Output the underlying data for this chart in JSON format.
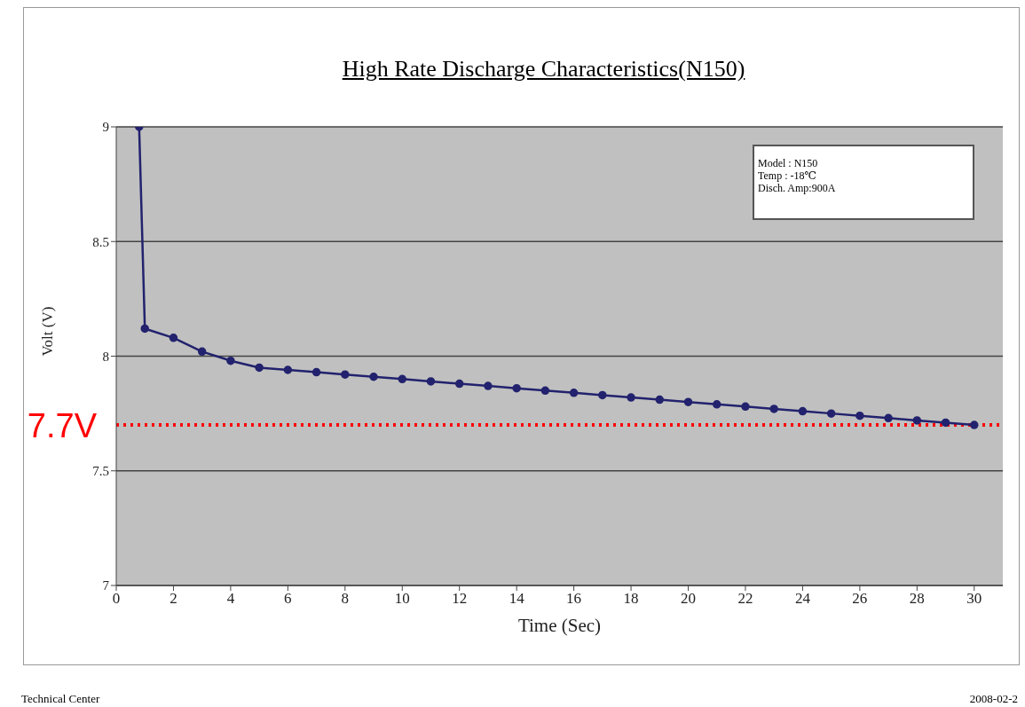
{
  "chart_data": {
    "type": "line",
    "title": "High Rate Discharge Characteristics(N150)",
    "xlabel": "Time (Sec)",
    "ylabel": "Volt (V)",
    "x": [
      0.8,
      1,
      2,
      3,
      4,
      5,
      6,
      7,
      8,
      9,
      10,
      11,
      12,
      13,
      14,
      15,
      16,
      17,
      18,
      19,
      20,
      21,
      22,
      23,
      24,
      25,
      26,
      27,
      28,
      29,
      30
    ],
    "series": [
      {
        "color": "#22226e",
        "values": [
          9,
          8.12,
          8.08,
          8.02,
          7.98,
          7.95,
          7.94,
          7.93,
          7.92,
          7.91,
          7.9,
          7.89,
          7.88,
          7.87,
          7.86,
          7.85,
          7.84,
          7.83,
          7.82,
          7.81,
          7.8,
          7.79,
          7.78,
          7.77,
          7.76,
          7.75,
          7.74,
          7.73,
          7.72,
          7.71,
          7.7
        ]
      }
    ],
    "xlim": [
      0,
      31
    ],
    "xticks": [
      0,
      2,
      4,
      6,
      8,
      10,
      12,
      14,
      16,
      18,
      20,
      22,
      24,
      26,
      28,
      30
    ],
    "ylim": [
      7,
      9
    ],
    "yticks": [
      7,
      7.5,
      8,
      8.5,
      9
    ],
    "grid": "y",
    "marker": "circle",
    "line_style": "solid",
    "ref_lines": [
      {
        "axis": "y",
        "value": 7.7,
        "label": "7.7V",
        "color": "#ff0000",
        "line_style": "dotted"
      }
    ],
    "annotations": [
      "Model : N150",
      "Temp : -18℃",
      "Disch. Amp:900A",
      "Technical Center",
      "2008-02-2"
    ]
  }
}
